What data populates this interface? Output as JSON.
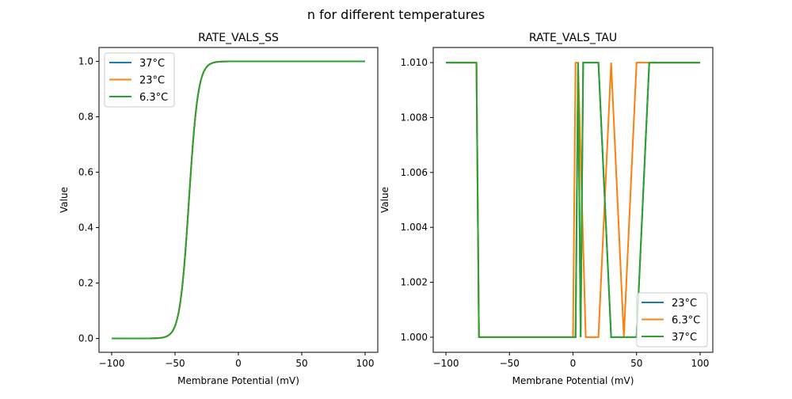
{
  "suptitle": "n for different temperatures",
  "chart_data": [
    {
      "type": "line",
      "title": "RATE_VALS_SS",
      "xlabel": "Membrane Potential (mV)",
      "ylabel": "Value",
      "xlim": [
        -110,
        110
      ],
      "ylim": [
        -0.05,
        1.05
      ],
      "xticks": [
        -100,
        -50,
        0,
        50,
        100
      ],
      "xtick_labels": [
        "−100",
        "−50",
        "0",
        "50",
        "100"
      ],
      "yticks": [
        0,
        0.2,
        0.4,
        0.6,
        0.8,
        1.0
      ],
      "ytick_labels": [
        "0.0",
        "0.2",
        "0.4",
        "0.6",
        "0.8",
        "1.0"
      ],
      "grid": false,
      "legend_placement": "upper-left",
      "curve": {
        "form": "sigmoid",
        "x_half": -39,
        "slope": 3.6,
        "x_range": [
          -100,
          100
        ]
      },
      "series": [
        {
          "name": "37°C",
          "color": "#1f77b4"
        },
        {
          "name": "23°C",
          "color": "#ff7f0e"
        },
        {
          "name": "6.3°C",
          "color": "#2ca02c"
        }
      ]
    },
    {
      "type": "line",
      "title": "RATE_VALS_TAU",
      "xlabel": "Membrane Potential (mV)",
      "ylabel": "Value",
      "xlim": [
        -110,
        110
      ],
      "ylim": [
        0.99945,
        1.01055
      ],
      "xticks": [
        -100,
        -50,
        0,
        50,
        100
      ],
      "xtick_labels": [
        "−100",
        "−50",
        "0",
        "50",
        "100"
      ],
      "yticks": [
        1.0,
        1.002,
        1.004,
        1.006,
        1.008,
        1.01
      ],
      "ytick_labels": [
        "1.000",
        "1.002",
        "1.004",
        "1.006",
        "1.008",
        "1.010"
      ],
      "grid": false,
      "legend_placement": "lower-right",
      "series": [
        {
          "name": "23°C",
          "color": "#1f77b4",
          "x": [
            -100,
            -76,
            -74,
            2,
            4,
            6,
            8,
            20,
            30,
            50,
            60,
            100
          ],
          "y": [
            1.01,
            1.01,
            1.0,
            1.0,
            1.01,
            1.0,
            1.01,
            1.01,
            1.0,
            1.0,
            1.01,
            1.01
          ]
        },
        {
          "name": "6.3°C",
          "color": "#ff7f0e",
          "x": [
            -100,
            -76,
            -74,
            0,
            2,
            4,
            10,
            20,
            30,
            40,
            50,
            100
          ],
          "y": [
            1.01,
            1.01,
            1.0,
            1.0,
            1.01,
            1.01,
            1.0,
            1.0,
            1.01,
            1.0,
            1.01,
            1.01
          ]
        },
        {
          "name": "37°C",
          "color": "#2ca02c",
          "x": [
            -100,
            -76,
            -74,
            2,
            4,
            6,
            8,
            20,
            30,
            50,
            60,
            100
          ],
          "y": [
            1.01,
            1.01,
            1.0,
            1.0,
            1.01,
            1.0,
            1.01,
            1.01,
            1.0,
            1.0,
            1.01,
            1.01
          ]
        }
      ]
    }
  ]
}
